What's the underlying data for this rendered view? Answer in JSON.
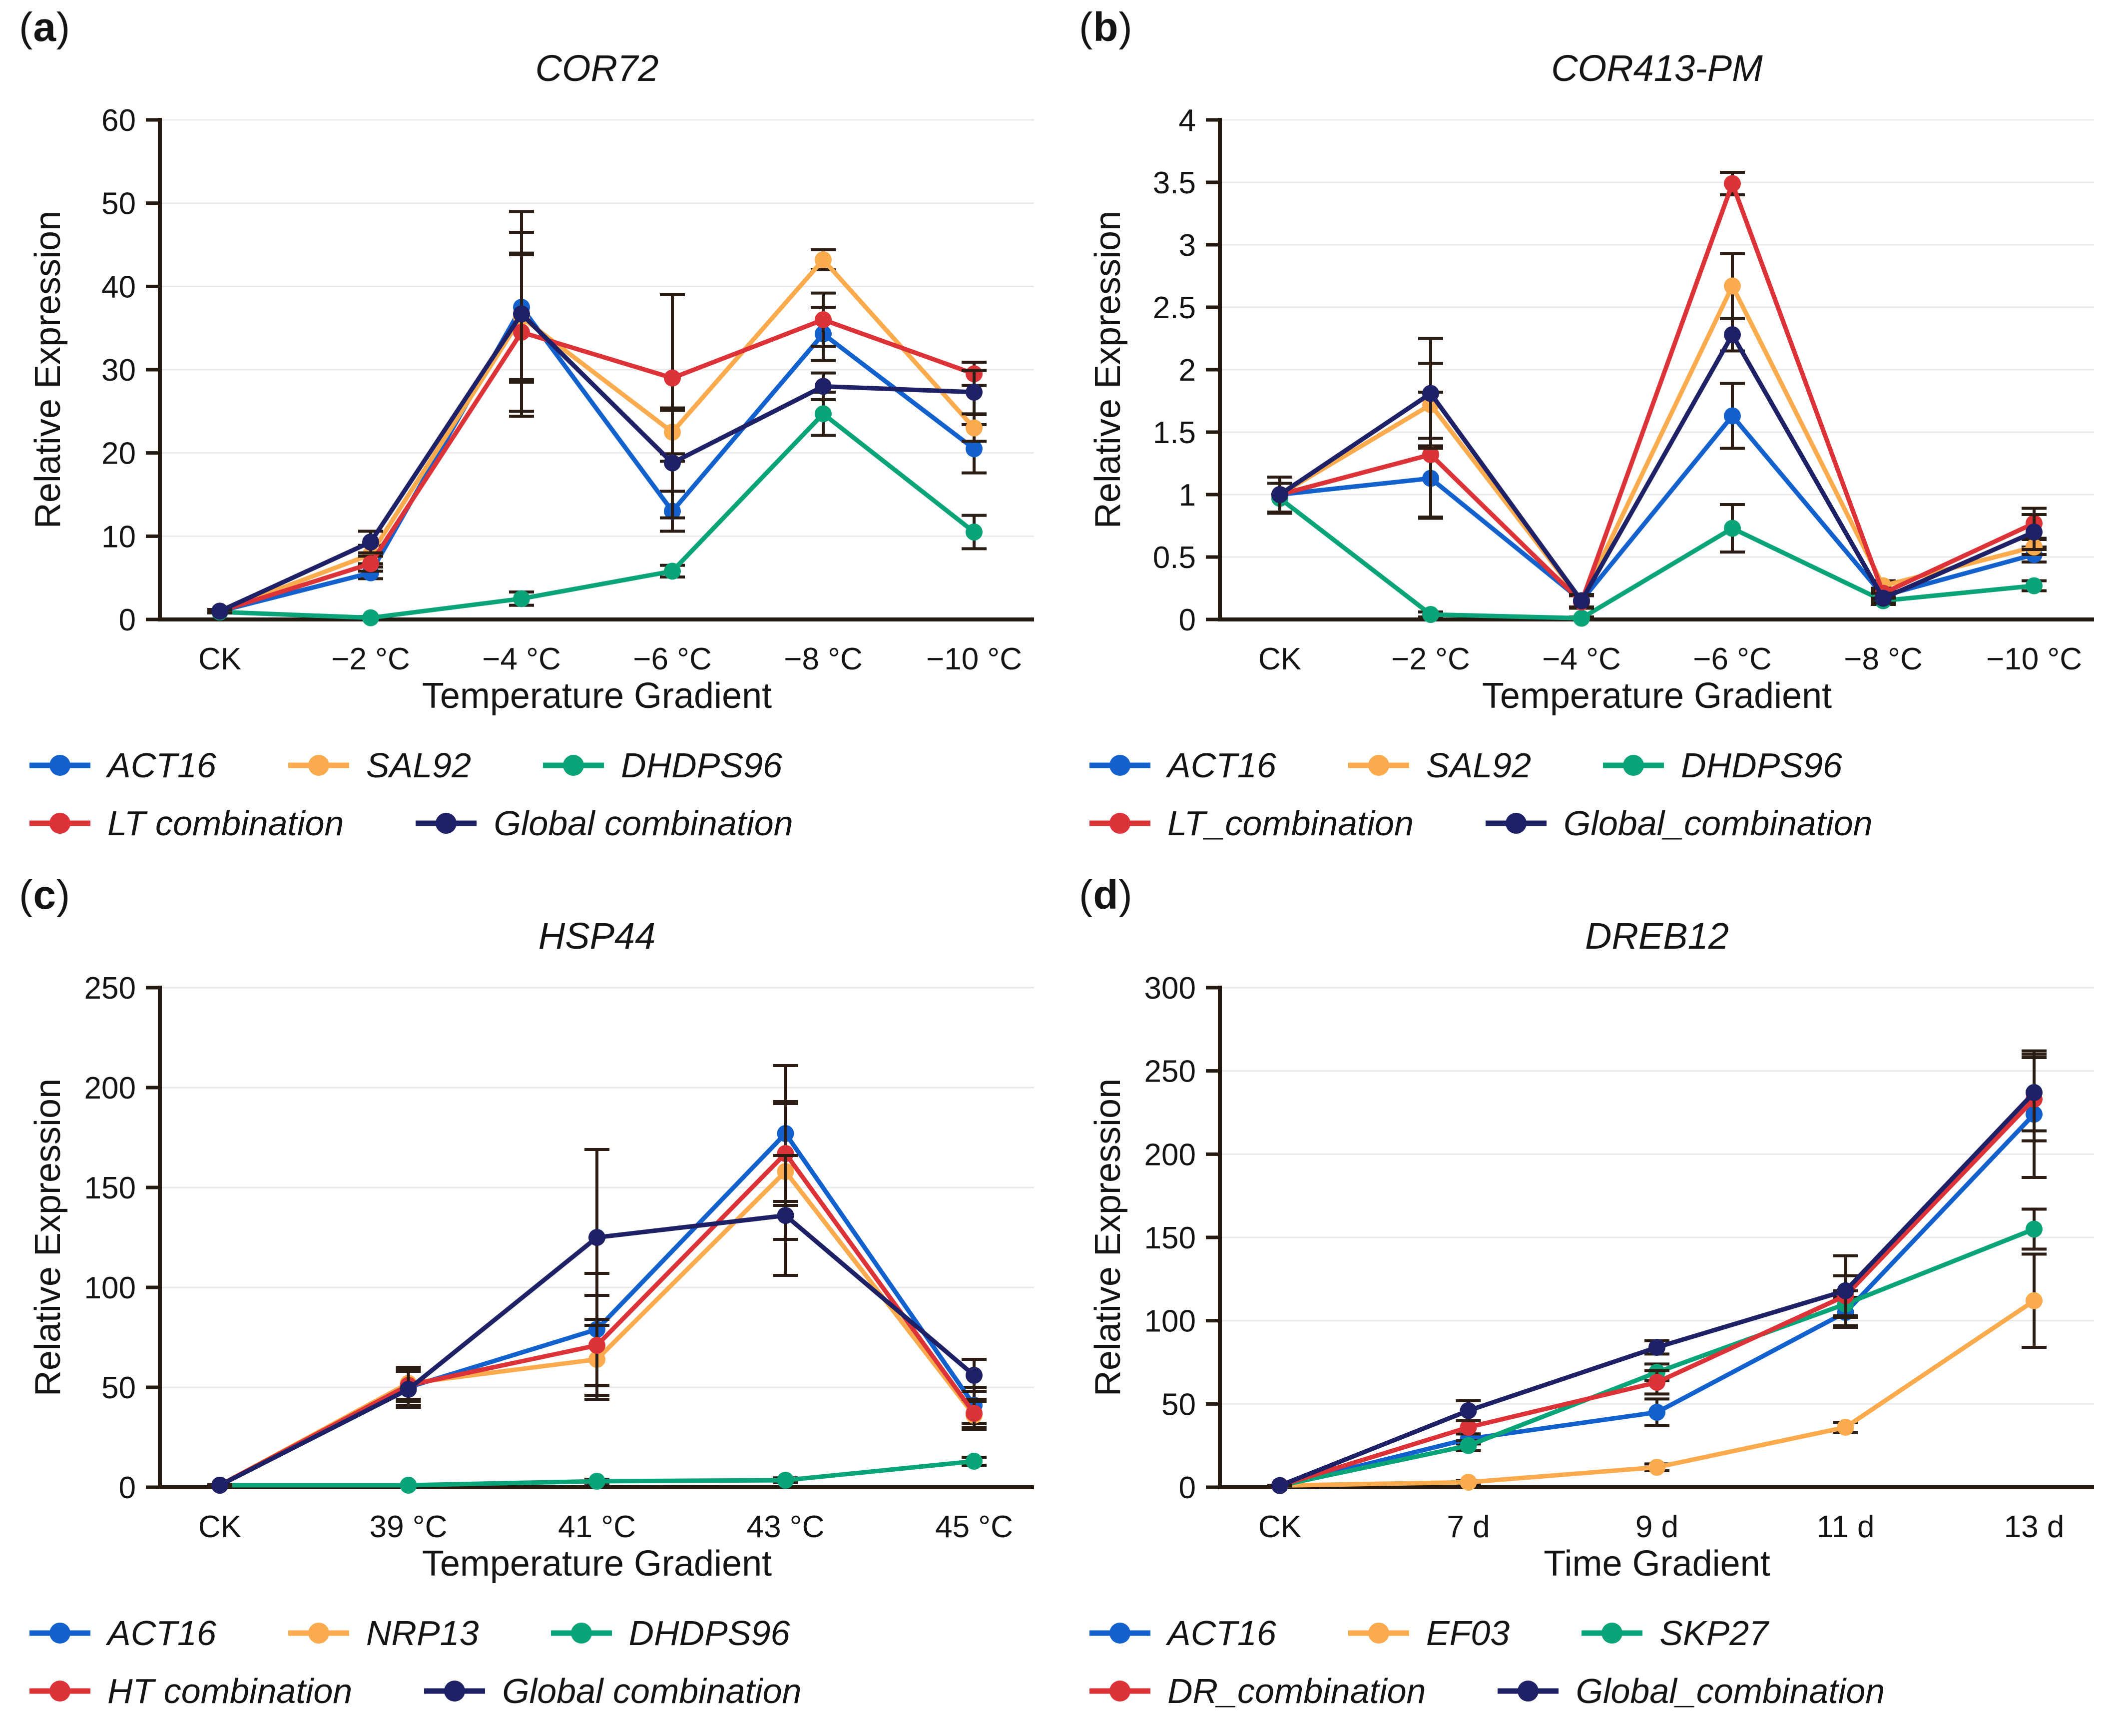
{
  "figure": {
    "background": "#ffffff",
    "text_color": "#141414",
    "grid_color": "#e9e9e9",
    "axis_color": "#241a10",
    "errorbar_color": "#2b1d13",
    "series_colors": {
      "blue": "#1261cc",
      "orange": "#faab4d",
      "green": "#0aa478",
      "red": "#dc3338",
      "navy": "#1e2166"
    }
  },
  "chart_data": [
    {
      "type": "line",
      "letter_prefix": "(",
      "letter": "a",
      "letter_suffix": ")",
      "title": "COR72",
      "xlabel": "Temperature Gradient",
      "ylabel": "Relative Expression",
      "categories": [
        "CK",
        "−2 °C",
        "−4 °C",
        "−6 °C",
        "−8 °C",
        "−10 °C"
      ],
      "ylim": [
        0,
        60
      ],
      "yticks": [
        "0",
        "10",
        "20",
        "30",
        "40",
        "50",
        "60"
      ],
      "grid": "horizontal",
      "legend_position": "below",
      "series": [
        {
          "name": "ACT16",
          "color": "#1261cc",
          "values": [
            1,
            5.6,
            37.5,
            13,
            34.3,
            20.5
          ],
          "errors": [
            0.2,
            0.7,
            9,
            2.4,
            3.2,
            2.9
          ]
        },
        {
          "name": "SAL92",
          "color": "#faab4d",
          "values": [
            1,
            7.8,
            36.3,
            22.5,
            43.2,
            23
          ],
          "errors": [
            0.2,
            1.1,
            7.5,
            2.6,
            1.2,
            1.6
          ]
        },
        {
          "name": "DHDPS96",
          "color": "#0aa478",
          "values": [
            0.9,
            0.2,
            2.5,
            5.8,
            24.7,
            10.5
          ],
          "errors": [
            0.1,
            0.15,
            0.8,
            0.7,
            2.6,
            2
          ]
        },
        {
          "name": "LT combination",
          "color": "#dc3338",
          "values": [
            1,
            6.7,
            34.5,
            29,
            36,
            29.5
          ],
          "errors": [
            0.2,
            0.9,
            9.5,
            10,
            3.2,
            1.4
          ]
        },
        {
          "name": "Global combination",
          "color": "#1e2166",
          "values": [
            1,
            9.3,
            36.7,
            18.8,
            28,
            27.3
          ],
          "errors": [
            0.2,
            1.3,
            12.3,
            6.6,
            1.6,
            2.6
          ]
        }
      ]
    },
    {
      "type": "line",
      "letter_prefix": "(",
      "letter": "b",
      "letter_suffix": ")",
      "title": "COR413-PM",
      "xlabel": "Temperature Gradient",
      "ylabel": "Relative Expression",
      "categories": [
        "CK",
        "−2 °C",
        "−4 °C",
        "−6 °C",
        "−8 °C",
        "−10 °C"
      ],
      "ylim": [
        0,
        4
      ],
      "yticks": [
        "0",
        "0.5",
        "1",
        "1.5",
        "2",
        "2.5",
        "3",
        "3.5",
        "4"
      ],
      "grid": "horizontal",
      "legend_position": "below",
      "series": [
        {
          "name": "ACT16",
          "color": "#1261cc",
          "values": [
            1,
            1.13,
            0.15,
            1.63,
            0.19,
            0.52
          ],
          "errors": [
            0.14,
            0.32,
            0.05,
            0.26,
            0.04,
            0.06
          ]
        },
        {
          "name": "SAL92",
          "color": "#faab4d",
          "values": [
            1,
            1.72,
            0.15,
            2.67,
            0.27,
            0.58
          ],
          "errors": [
            0.14,
            0.33,
            0.05,
            0.26,
            0.04,
            0.06
          ]
        },
        {
          "name": "DHDPS96",
          "color": "#0aa478",
          "values": [
            0.97,
            0.04,
            0.01,
            0.73,
            0.15,
            0.27
          ],
          "errors": [
            0.12,
            0.02,
            0.01,
            0.19,
            0.03,
            0.04
          ]
        },
        {
          "name": "LT_combination",
          "color": "#dc3338",
          "values": [
            1,
            1.32,
            0.14,
            3.49,
            0.21,
            0.77
          ],
          "errors": [
            0.14,
            0.5,
            0.05,
            0.09,
            0.04,
            0.12
          ]
        },
        {
          "name": "Global_combination",
          "color": "#1e2166",
          "values": [
            1,
            1.81,
            0.15,
            2.28,
            0.17,
            0.7
          ],
          "errors": [
            0.14,
            0.44,
            0.05,
            0.13,
            0.04,
            0.14
          ]
        }
      ]
    },
    {
      "type": "line",
      "letter_prefix": "(",
      "letter": "c",
      "letter_suffix": ")",
      "title": "HSP44",
      "xlabel": "Temperature Gradient",
      "ylabel": "Relative Expression",
      "categories": [
        "CK",
        "39 °C",
        "41 °C",
        "43 °C",
        "45 °C"
      ],
      "ylim": [
        0,
        250
      ],
      "yticks": [
        "0",
        "50",
        "100",
        "150",
        "200",
        "250"
      ],
      "grid": "horizontal",
      "legend_position": "below",
      "series": [
        {
          "name": "ACT16",
          "color": "#1261cc",
          "values": [
            1,
            50,
            79,
            177,
            41
          ],
          "errors": [
            0.3,
            9,
            28,
            34,
            9
          ]
        },
        {
          "name": "NRP13",
          "color": "#faab4d",
          "values": [
            1,
            52,
            64,
            158,
            36
          ],
          "errors": [
            0.3,
            8,
            20,
            34,
            7
          ]
        },
        {
          "name": "DHDPS96",
          "color": "#0aa478",
          "values": [
            1,
            1,
            3,
            3.5,
            13
          ],
          "errors": [
            0.2,
            0.4,
            1,
            1.2,
            2
          ]
        },
        {
          "name": "HT combination",
          "color": "#dc3338",
          "values": [
            1,
            51,
            71,
            167,
            37
          ],
          "errors": [
            0.3,
            8,
            25,
            26,
            7
          ]
        },
        {
          "name": "Global combination",
          "color": "#1e2166",
          "values": [
            1,
            49,
            125,
            136,
            56
          ],
          "errors": [
            0.3,
            9,
            44,
            30,
            8
          ]
        }
      ]
    },
    {
      "type": "line",
      "letter_prefix": "(",
      "letter": "d",
      "letter_suffix": ")",
      "title": "DREB12",
      "xlabel": "Time Gradient",
      "ylabel": "Relative Expression",
      "categories": [
        "CK",
        "7 d",
        "9 d",
        "11 d",
        "13 d"
      ],
      "ylim": [
        0,
        300
      ],
      "yticks": [
        "0",
        "50",
        "100",
        "150",
        "200",
        "250",
        "300"
      ],
      "grid": "horizontal",
      "legend_position": "below",
      "series": [
        {
          "name": "ACT16",
          "color": "#1261cc",
          "values": [
            1,
            29,
            45,
            105,
            224
          ],
          "errors": [
            0.2,
            3,
            8,
            9,
            38
          ]
        },
        {
          "name": "EF03",
          "color": "#faab4d",
          "values": [
            1,
            3,
            12,
            36,
            112
          ],
          "errors": [
            0.2,
            1,
            2,
            3,
            28
          ]
        },
        {
          "name": "SKP27",
          "color": "#0aa478",
          "values": [
            1,
            25,
            69,
            110,
            155
          ],
          "errors": [
            0.2,
            3,
            5,
            8,
            12
          ]
        },
        {
          "name": "DR_combination",
          "color": "#dc3338",
          "values": [
            1,
            36,
            63,
            115,
            233
          ],
          "errors": [
            0.2,
            4,
            7,
            12,
            25
          ]
        },
        {
          "name": "Global_combination",
          "color": "#1e2166",
          "values": [
            1,
            46,
            84,
            118,
            237
          ],
          "errors": [
            0.2,
            6,
            4,
            21,
            23
          ]
        }
      ]
    }
  ]
}
